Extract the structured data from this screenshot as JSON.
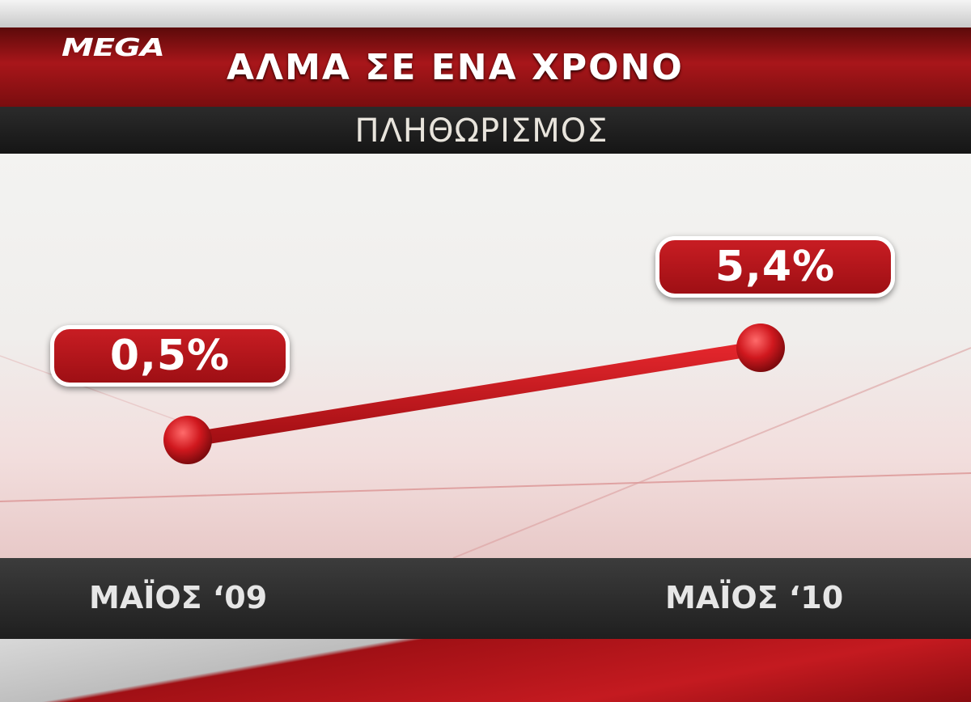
{
  "header": {
    "logo": "MEGA",
    "title": "ΑΛΜΑ ΣΕ ΕΝΑ ΧΡΟΝΟ",
    "subtitle": "ΠΛΗΘΩΡΙΣΜΟΣ"
  },
  "colors": {
    "accent": "#b5161b",
    "label_border": "#ffffff"
  },
  "chart_data": {
    "type": "line",
    "title": "ΑΛΜΑ ΣΕ ΕΝΑ ΧΡΟΝΟ",
    "subtitle": "ΠΛΗΘΩΡΙΣΜΟΣ",
    "categories": [
      "ΜΑΪΟΣ ‘09",
      "ΜΑΪΟΣ ‘10"
    ],
    "values": [
      0.5,
      5.4
    ],
    "data_labels": [
      "0,5%",
      "5,4%"
    ],
    "unit": "%",
    "grid": false
  }
}
